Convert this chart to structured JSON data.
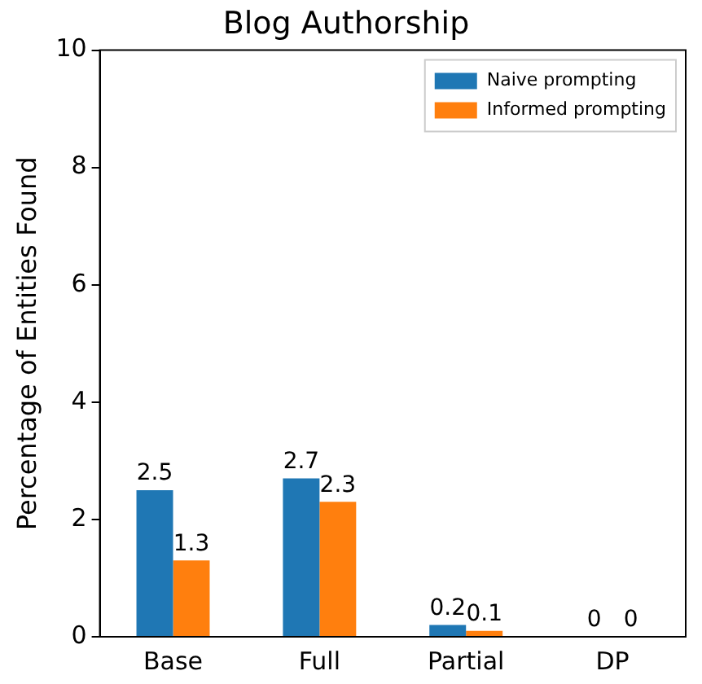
{
  "chart_data": {
    "type": "bar",
    "title": "Blog Authorship",
    "ylabel": "Percentage of Entities Found",
    "categories": [
      "Base",
      "Full",
      "Partial",
      "DP"
    ],
    "series": [
      {
        "name": "Naive prompting",
        "color": "#1f77b4",
        "values": [
          2.5,
          2.7,
          0.2,
          0
        ]
      },
      {
        "name": "Informed prompting",
        "color": "#ff7f0e",
        "values": [
          1.3,
          2.3,
          0.1,
          0
        ]
      }
    ],
    "ylim": [
      0,
      10
    ],
    "yticks": [
      0,
      2,
      4,
      6,
      8,
      10
    ],
    "grid": false,
    "legend": "top right",
    "data_labels": true
  }
}
